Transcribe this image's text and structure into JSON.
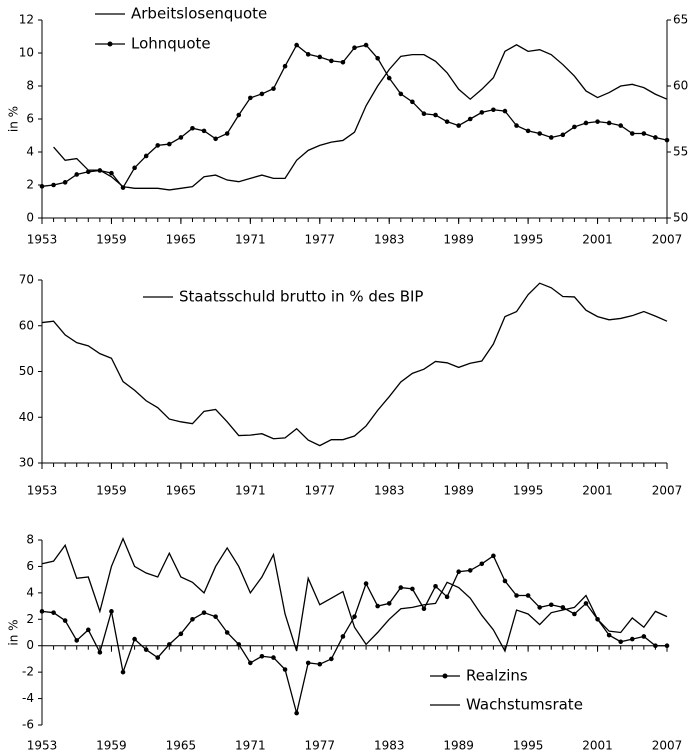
{
  "chart_data": [
    {
      "type": "line",
      "ylabel": "in %",
      "x": [
        1953,
        1954,
        1955,
        1956,
        1957,
        1958,
        1959,
        1960,
        1961,
        1962,
        1963,
        1964,
        1965,
        1966,
        1967,
        1968,
        1969,
        1970,
        1971,
        1972,
        1973,
        1974,
        1975,
        1976,
        1977,
        1978,
        1979,
        1980,
        1981,
        1982,
        1983,
        1984,
        1985,
        1986,
        1987,
        1988,
        1989,
        1990,
        1991,
        1992,
        1993,
        1994,
        1995,
        1996,
        1997,
        1998,
        1999,
        2000,
        2001,
        2002,
        2003,
        2004,
        2005,
        2006,
        2007
      ],
      "xlim": [
        1953,
        2007
      ],
      "xticks": [
        1953,
        1959,
        1965,
        1971,
        1977,
        1983,
        1989,
        1995,
        2001,
        2007
      ],
      "ylim": [
        0,
        12
      ],
      "yticks": [
        0,
        2,
        4,
        6,
        8,
        10,
        12
      ],
      "y2lim": [
        50,
        65
      ],
      "y2ticks": [
        50,
        55,
        60,
        65
      ],
      "series": [
        {
          "name": "Arbeitslosenquote",
          "color": "#000000",
          "marker": "none",
          "axis": "y",
          "values": [
            null,
            4.3,
            3.5,
            3.6,
            2.9,
            2.9,
            2.5,
            1.9,
            1.8,
            1.8,
            1.8,
            1.7,
            1.8,
            1.9,
            2.5,
            2.6,
            2.3,
            2.2,
            2.4,
            2.6,
            2.4,
            2.4,
            3.5,
            4.1,
            4.4,
            4.6,
            4.7,
            5.2,
            6.8,
            8.0,
            9.0,
            9.8,
            9.9,
            9.9,
            9.5,
            8.8,
            7.8,
            7.2,
            7.8,
            8.5,
            10.1,
            10.5,
            10.1,
            10.2,
            9.9,
            9.3,
            8.6,
            7.7,
            7.3,
            7.6,
            8.0,
            8.1,
            7.9,
            7.5,
            7.2
          ]
        },
        {
          "name": "Lohnquote",
          "color": "#000000",
          "marker": "circle",
          "axis": "y2",
          "values": [
            52.4,
            52.5,
            52.7,
            53.3,
            53.5,
            53.6,
            53.4,
            52.3,
            53.8,
            54.7,
            55.5,
            55.6,
            56.1,
            56.8,
            56.6,
            56.0,
            56.4,
            57.8,
            59.1,
            59.4,
            59.8,
            61.5,
            63.1,
            62.4,
            62.2,
            61.9,
            61.8,
            62.9,
            63.1,
            62.1,
            60.6,
            59.4,
            58.8,
            57.9,
            57.8,
            57.3,
            57.0,
            57.5,
            58.0,
            58.2,
            58.1,
            57.0,
            56.6,
            56.4,
            56.1,
            56.3,
            56.9,
            57.2,
            57.3,
            57.2,
            57.0,
            56.4,
            56.4,
            56.1,
            55.9
          ]
        }
      ]
    },
    {
      "type": "line",
      "x": [
        1953,
        1954,
        1955,
        1956,
        1957,
        1958,
        1959,
        1960,
        1961,
        1962,
        1963,
        1964,
        1965,
        1966,
        1967,
        1968,
        1969,
        1970,
        1971,
        1972,
        1973,
        1974,
        1975,
        1976,
        1977,
        1978,
        1979,
        1980,
        1981,
        1982,
        1983,
        1984,
        1985,
        1986,
        1987,
        1988,
        1989,
        1990,
        1991,
        1992,
        1993,
        1994,
        1995,
        1996,
        1997,
        1998,
        1999,
        2000,
        2001,
        2002,
        2003,
        2004,
        2005,
        2006,
        2007
      ],
      "xlim": [
        1953,
        2007
      ],
      "xticks": [
        1953,
        1959,
        1965,
        1971,
        1977,
        1983,
        1989,
        1995,
        2001,
        2007
      ],
      "ylim": [
        30,
        70
      ],
      "yticks": [
        30,
        40,
        50,
        60,
        70
      ],
      "series": [
        {
          "name": "Staatsschuld brutto in % des BIP",
          "color": "#000000",
          "marker": "none",
          "axis": "y",
          "values": [
            60.7,
            61.0,
            58.0,
            56.3,
            55.6,
            53.9,
            52.9,
            47.8,
            45.9,
            43.6,
            42.1,
            39.6,
            39.0,
            38.6,
            41.3,
            41.7,
            39.0,
            36.0,
            36.1,
            36.4,
            35.3,
            35.5,
            37.5,
            35.0,
            33.8,
            35.1,
            35.1,
            35.9,
            38.1,
            41.5,
            44.5,
            47.7,
            49.6,
            50.5,
            52.2,
            51.9,
            50.9,
            51.8,
            52.3,
            56.0,
            62.0,
            63.1,
            66.8,
            69.3,
            68.3,
            66.4,
            66.3,
            63.4,
            62.0,
            61.3,
            61.6,
            62.2,
            63.1,
            62.1,
            61.0
          ]
        }
      ]
    },
    {
      "type": "line",
      "ylabel": "in %",
      "x": [
        1953,
        1954,
        1955,
        1956,
        1957,
        1958,
        1959,
        1960,
        1961,
        1962,
        1963,
        1964,
        1965,
        1966,
        1967,
        1968,
        1969,
        1970,
        1971,
        1972,
        1973,
        1974,
        1975,
        1976,
        1977,
        1978,
        1979,
        1980,
        1981,
        1982,
        1983,
        1984,
        1985,
        1986,
        1987,
        1988,
        1989,
        1990,
        1991,
        1992,
        1993,
        1994,
        1995,
        1996,
        1997,
        1998,
        1999,
        2000,
        2001,
        2002,
        2003,
        2004,
        2005,
        2006,
        2007
      ],
      "xlim": [
        1953,
        2007
      ],
      "xticks": [
        1953,
        1959,
        1965,
        1971,
        1977,
        1983,
        1989,
        1995,
        2001,
        2007
      ],
      "ylim": [
        -6,
        8
      ],
      "yticks": [
        -6,
        -4,
        -2,
        0,
        2,
        4,
        6,
        8
      ],
      "series": [
        {
          "name": "Realzins",
          "color": "#000000",
          "marker": "circle",
          "axis": "y",
          "values": [
            2.6,
            2.5,
            1.9,
            0.4,
            1.2,
            -0.5,
            2.6,
            -2.0,
            0.5,
            -0.3,
            -0.9,
            0.1,
            0.9,
            2.0,
            2.5,
            2.2,
            1.0,
            0.1,
            -1.3,
            -0.8,
            -0.9,
            -1.8,
            -5.1,
            -1.3,
            -1.4,
            -1.0,
            0.7,
            2.2,
            4.7,
            3.0,
            3.2,
            4.4,
            4.3,
            2.8,
            4.5,
            3.7,
            5.6,
            5.7,
            6.2,
            6.8,
            4.9,
            3.8,
            3.8,
            2.9,
            3.1,
            2.9,
            2.4,
            3.2,
            2.0,
            0.8,
            0.3,
            0.5,
            0.7,
            0.0,
            0.0
          ]
        },
        {
          "name": "Wachstumsrate",
          "color": "#000000",
          "marker": "none",
          "axis": "y",
          "values": [
            6.2,
            6.4,
            7.6,
            5.1,
            5.2,
            2.6,
            6.0,
            8.1,
            6.0,
            5.5,
            5.2,
            7.0,
            5.2,
            4.8,
            4.0,
            6.0,
            7.4,
            6.0,
            4.0,
            5.2,
            6.9,
            2.4,
            -0.4,
            5.1,
            3.1,
            3.6,
            4.1,
            1.4,
            0.1,
            1.0,
            2.0,
            2.8,
            2.9,
            3.1,
            3.2,
            4.8,
            4.4,
            3.6,
            2.3,
            1.2,
            -0.4,
            2.7,
            2.4,
            1.6,
            2.5,
            2.7,
            2.9,
            3.8,
            2.0,
            1.1,
            1.0,
            2.1,
            1.4,
            2.6,
            2.2
          ]
        }
      ]
    }
  ]
}
